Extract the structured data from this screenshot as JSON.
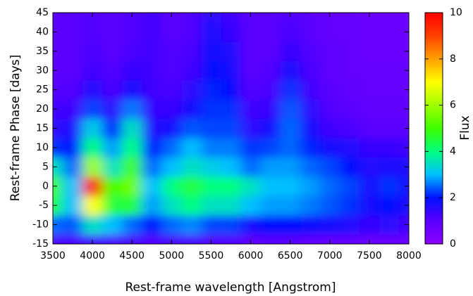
{
  "chart_data": {
    "type": "heatmap",
    "xlabel": "Rest-frame wavelength [Angstrom]",
    "ylabel": "Rest-frame Phase [days]",
    "colorbar_label": "Flux",
    "x": [
      3500,
      3750,
      4000,
      4250,
      4500,
      4750,
      5000,
      5250,
      5500,
      5750,
      6000,
      6250,
      6500,
      6750,
      7000,
      7250,
      7500,
      7750,
      8000
    ],
    "y": [
      -15,
      -10,
      -5,
      0,
      5,
      10,
      15,
      20,
      25,
      30,
      35,
      40,
      45
    ],
    "z": [
      [
        1.2,
        1.2,
        1.3,
        1.2,
        1.2,
        1.1,
        1.2,
        1.2,
        1.1,
        1.1,
        0.9,
        1,
        1,
        0.9,
        0.8,
        0.8,
        0.7,
        0.7,
        0.7
      ],
      [
        2.5,
        2.4,
        3.5,
        3,
        2.5,
        2,
        2.5,
        2.7,
        2.3,
        2.3,
        1.8,
        2,
        2,
        1.9,
        1.8,
        1.6,
        1.4,
        1.5,
        1.3
      ],
      [
        4.5,
        3,
        7,
        4.5,
        4.5,
        2.8,
        3.5,
        4,
        3.5,
        3.5,
        3,
        2.8,
        2.8,
        2.6,
        2.4,
        2.2,
        1.8,
        2,
        1.7
      ],
      [
        5,
        3,
        9.5,
        5,
        5.5,
        3,
        4,
        4.5,
        4,
        4,
        3.5,
        3,
        3,
        2.8,
        2.5,
        2.3,
        1.8,
        2.2,
        1.8
      ],
      [
        3.5,
        2.5,
        6,
        3.5,
        5,
        2.5,
        3,
        3.5,
        3.2,
        3,
        2.5,
        2.8,
        2.8,
        2.5,
        2.3,
        2,
        1.6,
        1.7,
        1.7
      ],
      [
        2.2,
        2,
        4,
        2.8,
        4,
        2,
        2.5,
        3,
        2.6,
        2.6,
        2.2,
        2.3,
        2.5,
        2.1,
        1.8,
        1.6,
        1.4,
        1.4,
        1.3
      ],
      [
        1.5,
        1.6,
        3.2,
        2,
        3.5,
        1.6,
        1.8,
        2.4,
        2.3,
        2.3,
        1.5,
        1.8,
        2.5,
        1.8,
        1.3,
        1.2,
        1,
        1,
        1
      ],
      [
        1.3,
        1.3,
        2.3,
        1.5,
        2.6,
        1.4,
        1.4,
        1.8,
        2.2,
        2.2,
        1.3,
        1.4,
        2.4,
        1.5,
        1.1,
        1,
        0.9,
        0.9,
        0.9
      ],
      [
        1.1,
        1.1,
        1.6,
        1.2,
        1.8,
        1.3,
        1.2,
        1.5,
        2.1,
        2,
        1.1,
        1.2,
        2.2,
        1.3,
        1,
        0.9,
        0.8,
        0.8,
        0.8
      ],
      [
        1,
        1,
        1.3,
        1.1,
        1.4,
        1.3,
        1.1,
        1.3,
        2,
        1.8,
        1,
        1.1,
        1.8,
        1.2,
        0.9,
        0.8,
        0.8,
        0.8,
        0.8
      ],
      [
        1,
        1,
        1.2,
        1,
        1.2,
        1.3,
        1.1,
        1.2,
        1.9,
        1.6,
        1,
        1,
        1.4,
        1.1,
        0.9,
        0.8,
        0.7,
        0.7,
        0.7
      ],
      [
        1,
        1,
        1.1,
        1,
        1.1,
        1.3,
        1,
        1.1,
        1.7,
        1.4,
        1,
        1,
        1.2,
        1,
        0.8,
        0.8,
        0.7,
        0.7,
        0.7
      ],
      [
        1,
        1,
        1.1,
        1,
        1.1,
        1.3,
        1,
        1.1,
        1.5,
        1.3,
        1,
        1,
        1.1,
        1,
        0.8,
        0.8,
        0.7,
        0.7,
        0.7
      ]
    ],
    "xlim": [
      3500,
      8000
    ],
    "xticks": [
      3500,
      4000,
      4500,
      5000,
      5500,
      6000,
      6500,
      7000,
      7500,
      8000
    ],
    "ylim": [
      -15,
      45
    ],
    "yticks": [
      -15,
      -10,
      -5,
      0,
      5,
      10,
      15,
      20,
      25,
      30,
      35,
      40,
      45
    ],
    "zlim": [
      0,
      10
    ],
    "zticks": [
      0,
      2,
      4,
      6,
      8,
      10
    ],
    "colormap": [
      "#8b00ff",
      "#5a00ff",
      "#0010ff",
      "#00c0ff",
      "#00ff80",
      "#40ff00",
      "#a0ff00",
      "#ffff00",
      "#ffa000",
      "#ff4000",
      "#ff0000"
    ]
  }
}
